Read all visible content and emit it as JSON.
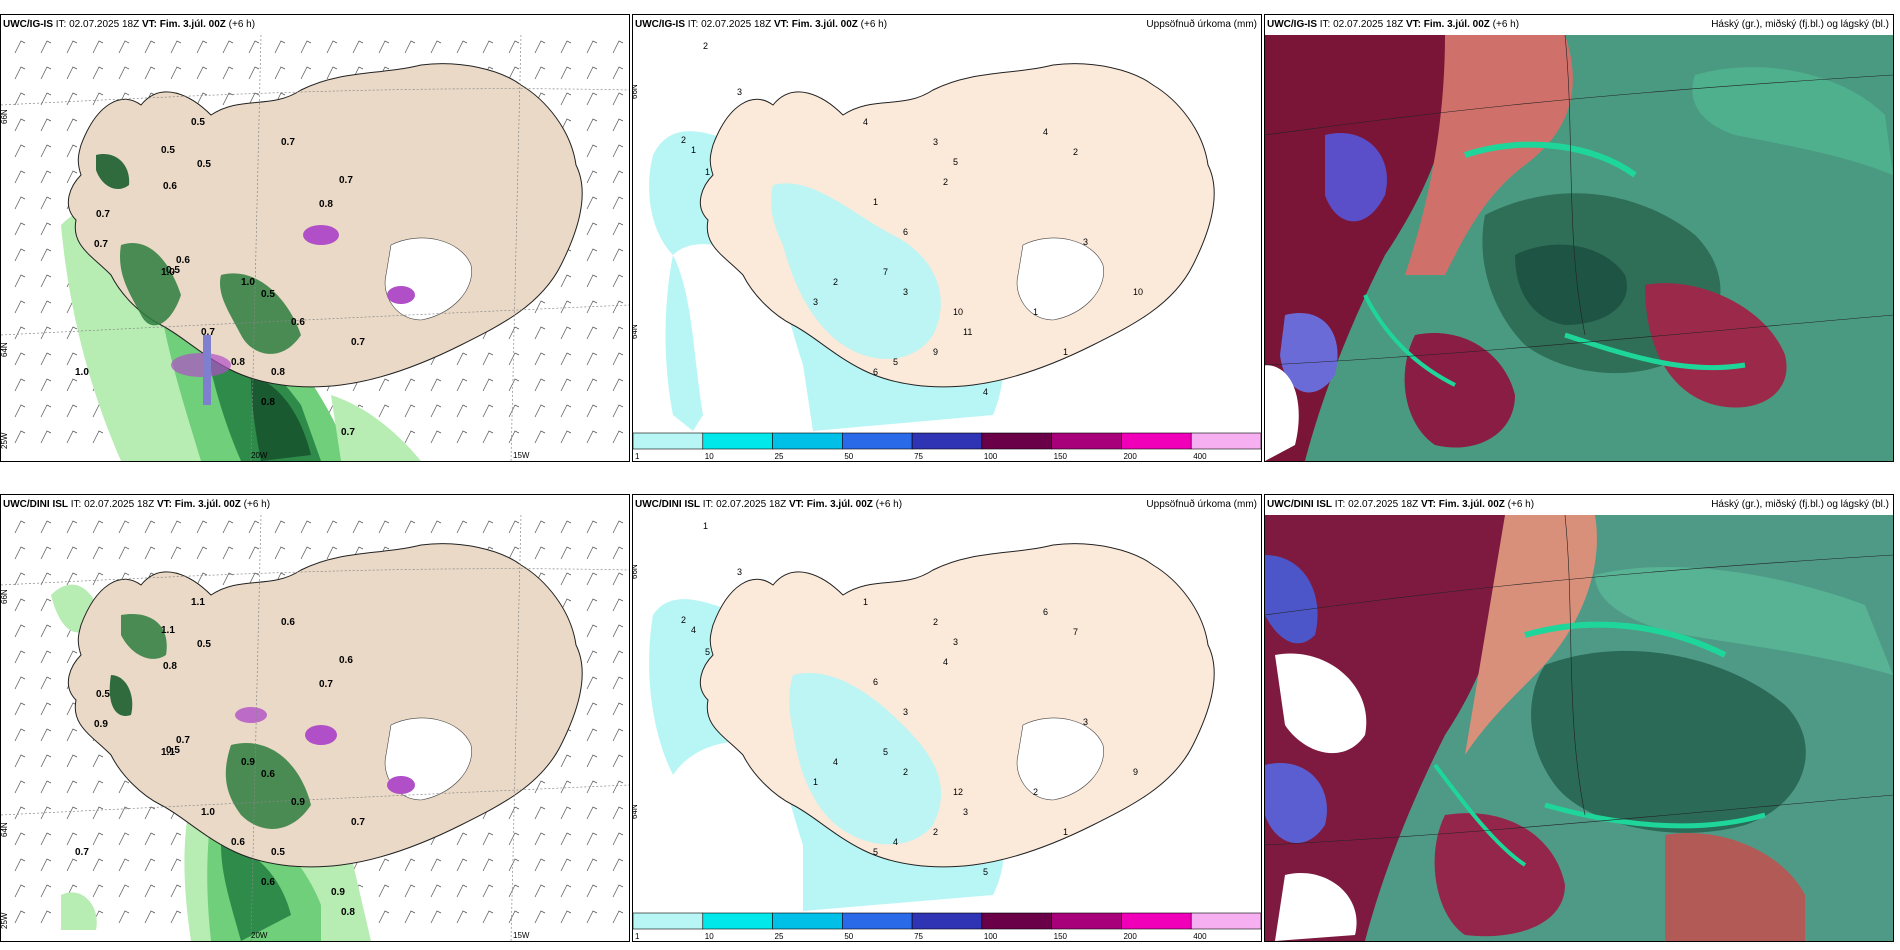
{
  "panels": {
    "r1c1": {
      "model": "UWC/IG-IS",
      "it_label": "IT:",
      "it_value": "02.07.2025 18Z",
      "vt_label": "VT:",
      "vt_value": "Fim. 3.júl. 00Z",
      "lead": "(+6 h)"
    },
    "r1c2": {
      "model": "UWC/IG-IS",
      "it_label": "IT:",
      "it_value": "02.07.2025 18Z",
      "vt_label": "VT:",
      "vt_value": "Fim. 3.júl. 00Z",
      "lead": "(+6 h)",
      "right_title": "Uppsöfnuð úrkoma (mm)"
    },
    "r1c3": {
      "model": "UWC/IG-IS",
      "it_label": "IT:",
      "it_value": "02.07.2025 18Z",
      "vt_label": "VT:",
      "vt_value": "Fim. 3.júl. 00Z",
      "lead": "(+6 h)",
      "right_title": "Háský (gr.), miðský (fj.bl.) og lágský (bl.)"
    },
    "r2c1": {
      "model": "UWC/DINI ISL",
      "it_label": "IT:",
      "it_value": "02.07.2025 18Z",
      "vt_label": "VT:",
      "vt_value": "Fim. 3.júl. 00Z",
      "lead": "(+6 h)"
    },
    "r2c2": {
      "model": "UWC/DINI ISL",
      "it_label": "IT:",
      "it_value": "02.07.2025 18Z",
      "vt_label": "VT:",
      "vt_value": "Fim. 3.júl. 00Z",
      "lead": "(+6 h)",
      "right_title": "Uppsöfnuð úrkoma (mm)"
    },
    "r2c3": {
      "model": "UWC/DINI ISL",
      "it_label": "IT:",
      "it_value": "02.07.2025 18Z",
      "vt_label": "VT:",
      "vt_value": "Fim. 3.júl. 00Z",
      "lead": "(+6 h)",
      "right_title": "Háský (gr.), miðský (fj.bl.) og lágský (bl.)"
    }
  },
  "axis_labels": {
    "lat66": "66N",
    "lat64": "64N",
    "lon25": "25W",
    "lon20": "20W",
    "lon15": "15W"
  },
  "legend": {
    "ticks": [
      "1",
      "10",
      "25",
      "50",
      "75",
      "100",
      "150",
      "200",
      "400"
    ],
    "colors": [
      "#b8f6f6",
      "#00e8ea",
      "#00c0e8",
      "#2a6ae8",
      "#2f34b4",
      "#6a0048",
      "#a8007a",
      "#f000b8",
      "#f6b0f2"
    ]
  },
  "precip_labels_r1": [
    "0.5",
    "0.5",
    "0.6",
    "0.7",
    "0.7",
    "0.6",
    "0.5",
    "1.0",
    "1.0",
    "0.5",
    "0.8",
    "0.7",
    "0.6",
    "0.7",
    "0.8",
    "0.8",
    "0.7",
    "0.7",
    "0.8",
    "1.0",
    "0.5",
    "0.7"
  ],
  "precip_labels_r2": [
    "1.1",
    "0.5",
    "0.8",
    "0.5",
    "0.9",
    "0.7",
    "0.5",
    "1.1",
    "0.9",
    "0.6",
    "0.7",
    "0.6",
    "0.9",
    "0.7",
    "0.5",
    "0.6",
    "0.8",
    "1.0",
    "0.6",
    "0.7",
    "1.1",
    "0.6",
    "0.9"
  ],
  "accum_labels_r1": [
    "2",
    "3",
    "2",
    "1",
    "1",
    "4",
    "3",
    "5",
    "2",
    "1",
    "6",
    "7",
    "3",
    "2",
    "3",
    "10",
    "11",
    "9",
    "5",
    "6",
    "4",
    "2",
    "3",
    "1",
    "1",
    "10",
    "4"
  ],
  "accum_labels_r2": [
    "1",
    "3",
    "2",
    "4",
    "5",
    "1",
    "2",
    "3",
    "4",
    "6",
    "3",
    "5",
    "2",
    "4",
    "1",
    "12",
    "3",
    "2",
    "4",
    "5",
    "6",
    "7",
    "3",
    "2",
    "1",
    "9",
    "5"
  ]
}
